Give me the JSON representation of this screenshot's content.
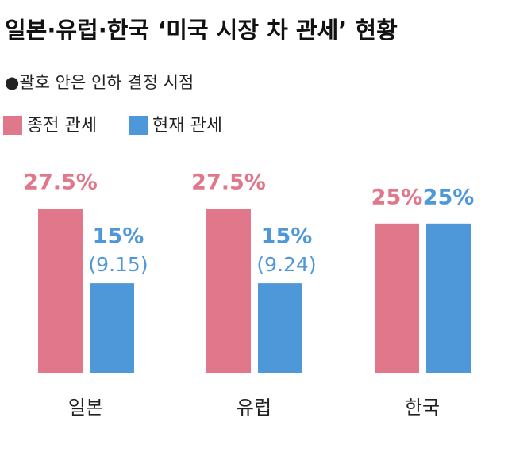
{
  "chart_data": {
    "type": "bar",
    "title": "일본·유럽·한국 ‘미국 시장 차 관세’ 현황",
    "subtitle": "●괄호 안은 인하 결정 시점",
    "categories": [
      "일본",
      "유럽",
      "한국"
    ],
    "series": [
      {
        "name": "종전 관세",
        "color": "#e0778b",
        "values": [
          27.5,
          27.5,
          25
        ],
        "value_labels": [
          "27.5%",
          "27.5%",
          "25%"
        ]
      },
      {
        "name": "현재 관세",
        "color": "#4e98d9",
        "values": [
          15,
          15,
          25
        ],
        "value_labels": [
          "15%",
          "15%",
          "25%"
        ],
        "notes": [
          "(9.15)",
          "(9.24)",
          null
        ]
      }
    ]
  }
}
